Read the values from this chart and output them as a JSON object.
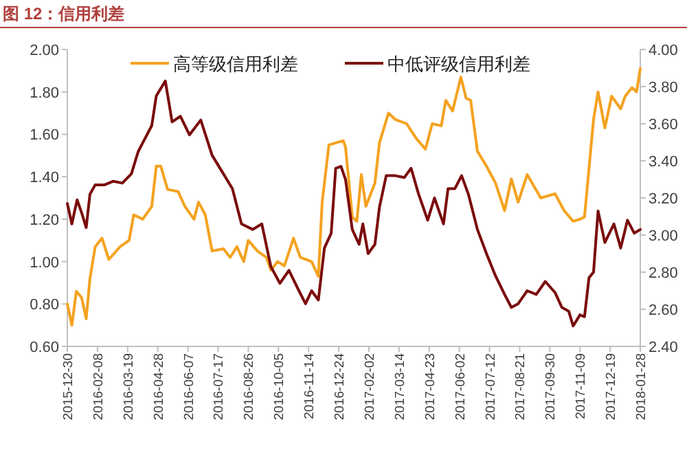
{
  "chart_data": {
    "type": "line",
    "title": "图 12：信用利差",
    "legend": "top",
    "grid": false,
    "xlim": [
      "2015-12-30",
      "2018-01-28"
    ],
    "xticks": [
      "2015-12-30",
      "2016-02-08",
      "2016-03-19",
      "2016-04-28",
      "2016-06-07",
      "2016-07-17",
      "2016-08-26",
      "2016-10-05",
      "2016-11-14",
      "2016-12-24",
      "2017-02-02",
      "2017-03-14",
      "2017-04-23",
      "2017-06-02",
      "2017-07-12",
      "2017-08-21",
      "2017-09-30",
      "2017-11-09",
      "2017-12-19",
      "2018-01-28"
    ],
    "ylim": [
      0.6,
      2.0
    ],
    "yticks": [
      {
        "value": 0.6,
        "label": "0.60"
      },
      {
        "value": 0.8,
        "label": "0.80"
      },
      {
        "value": 1.0,
        "label": "1.00"
      },
      {
        "value": 1.2,
        "label": "1.20"
      },
      {
        "value": 1.4,
        "label": "1.40"
      },
      {
        "value": 1.6,
        "label": "1.60"
      },
      {
        "value": 1.8,
        "label": "1.80"
      },
      {
        "value": 2.0,
        "label": "2.00"
      }
    ],
    "y2lim": [
      2.4,
      4.0
    ],
    "y2ticks": [
      {
        "value": 2.4,
        "label": "2.40"
      },
      {
        "value": 2.6,
        "label": "2.60"
      },
      {
        "value": 2.8,
        "label": "2.80"
      },
      {
        "value": 3.0,
        "label": "3.00"
      },
      {
        "value": 3.2,
        "label": "3.20"
      },
      {
        "value": 3.4,
        "label": "3.40"
      },
      {
        "value": 3.6,
        "label": "3.60"
      },
      {
        "value": 3.8,
        "label": "3.80"
      },
      {
        "value": 4.0,
        "label": "4.00"
      }
    ],
    "series": [
      {
        "name": "高等级信用利差",
        "color": "#f4a21f",
        "x": [
          "2015-12-30",
          "2016-01-05",
          "2016-01-11",
          "2016-01-18",
          "2016-01-24",
          "2016-01-29",
          "2016-02-05",
          "2016-02-14",
          "2016-02-23",
          "2016-03-09",
          "2016-03-21",
          "2016-03-27",
          "2016-04-08",
          "2016-04-20",
          "2016-04-26",
          "2016-05-02",
          "2016-05-11",
          "2016-05-25",
          "2016-06-03",
          "2016-06-15",
          "2016-06-21",
          "2016-06-30",
          "2016-07-09",
          "2016-07-24",
          "2016-08-02",
          "2016-08-11",
          "2016-08-20",
          "2016-08-26",
          "2016-09-07",
          "2016-09-19",
          "2016-09-25",
          "2016-10-04",
          "2016-10-13",
          "2016-10-25",
          "2016-11-03",
          "2016-11-18",
          "2016-11-27",
          "2016-12-02",
          "2016-12-11",
          "2016-12-30",
          "2017-01-02",
          "2017-01-11",
          "2017-01-17",
          "2017-01-23",
          "2017-01-29",
          "2017-02-10",
          "2017-02-16",
          "2017-02-28",
          "2017-03-09",
          "2017-03-24",
          "2017-04-06",
          "2017-04-18",
          "2017-04-27",
          "2017-05-09",
          "2017-05-15",
          "2017-05-24",
          "2017-06-04",
          "2017-06-11",
          "2017-06-17",
          "2017-06-26",
          "2017-07-08",
          "2017-07-20",
          "2017-08-01",
          "2017-08-10",
          "2017-08-19",
          "2017-08-31",
          "2017-09-18",
          "2017-10-07",
          "2017-10-19",
          "2017-10-31",
          "2017-11-09",
          "2017-11-15",
          "2017-11-27",
          "2017-12-03",
          "2017-12-12",
          "2017-12-21",
          "2018-01-02",
          "2018-01-08",
          "2018-01-17",
          "2018-01-23",
          "2018-01-28"
        ],
        "values": [
          0.8,
          0.7,
          0.86,
          0.83,
          0.73,
          0.92,
          1.07,
          1.11,
          1.01,
          1.07,
          1.1,
          1.22,
          1.2,
          1.26,
          1.45,
          1.45,
          1.34,
          1.33,
          1.26,
          1.2,
          1.28,
          1.22,
          1.05,
          1.06,
          1.02,
          1.07,
          1.0,
          1.1,
          1.05,
          1.02,
          0.96,
          1.0,
          0.98,
          1.11,
          1.02,
          1.0,
          0.93,
          1.28,
          1.55,
          1.57,
          1.54,
          1.21,
          1.19,
          1.41,
          1.26,
          1.37,
          1.56,
          1.7,
          1.67,
          1.65,
          1.58,
          1.53,
          1.65,
          1.64,
          1.76,
          1.71,
          1.87,
          1.77,
          1.76,
          1.52,
          1.45,
          1.37,
          1.24,
          1.39,
          1.28,
          1.41,
          1.3,
          1.32,
          1.24,
          1.19,
          1.2,
          1.21,
          1.67,
          1.8,
          1.63,
          1.78,
          1.72,
          1.78,
          1.82,
          1.8,
          1.91
        ]
      },
      {
        "name": "中低评级信用利差",
        "color": "#7b0c0c",
        "axis": "y2",
        "x": [
          "2015-12-30",
          "2016-01-05",
          "2016-01-12",
          "2016-01-18",
          "2016-01-24",
          "2016-01-29",
          "2016-02-05",
          "2016-02-17",
          "2016-02-29",
          "2016-03-12",
          "2016-03-24",
          "2016-04-02",
          "2016-04-11",
          "2016-04-20",
          "2016-04-26",
          "2016-05-08",
          "2016-05-17",
          "2016-05-28",
          "2016-06-09",
          "2016-06-24",
          "2016-07-09",
          "2016-07-24",
          "2016-08-05",
          "2016-08-17",
          "2016-09-01",
          "2016-09-13",
          "2016-09-25",
          "2016-10-07",
          "2016-10-19",
          "2016-10-31",
          "2016-11-10",
          "2016-11-18",
          "2016-11-27",
          "2016-12-05",
          "2016-12-14",
          "2016-12-20",
          "2016-12-27",
          "2017-01-02",
          "2017-01-11",
          "2017-01-20",
          "2017-01-25",
          "2017-02-01",
          "2017-02-10",
          "2017-02-16",
          "2017-02-25",
          "2017-03-09",
          "2017-03-21",
          "2017-03-30",
          "2017-04-09",
          "2017-04-21",
          "2017-04-30",
          "2017-05-12",
          "2017-05-18",
          "2017-05-27",
          "2017-06-05",
          "2017-06-14",
          "2017-06-26",
          "2017-07-08",
          "2017-07-20",
          "2017-08-01",
          "2017-08-10",
          "2017-08-19",
          "2017-08-31",
          "2017-09-12",
          "2017-09-24",
          "2017-10-07",
          "2017-10-16",
          "2017-10-25",
          "2017-10-31",
          "2017-11-09",
          "2017-11-15",
          "2017-11-21",
          "2017-11-27",
          "2017-12-03",
          "2017-12-12",
          "2017-12-24",
          "2018-01-02",
          "2018-01-11",
          "2018-01-20",
          "2018-01-28"
        ],
        "values": [
          3.17,
          3.06,
          3.19,
          3.12,
          3.04,
          3.22,
          3.27,
          3.27,
          3.29,
          3.28,
          3.33,
          3.45,
          3.52,
          3.59,
          3.75,
          3.83,
          3.61,
          3.64,
          3.54,
          3.62,
          3.43,
          3.33,
          3.25,
          3.06,
          3.03,
          3.06,
          2.83,
          2.74,
          2.81,
          2.71,
          2.63,
          2.7,
          2.65,
          2.93,
          3.01,
          3.36,
          3.37,
          3.3,
          3.03,
          2.95,
          3.06,
          2.9,
          2.95,
          3.15,
          3.32,
          3.32,
          3.31,
          3.36,
          3.22,
          3.08,
          3.2,
          3.06,
          3.25,
          3.25,
          3.32,
          3.22,
          3.03,
          2.9,
          2.78,
          2.68,
          2.61,
          2.63,
          2.7,
          2.68,
          2.75,
          2.69,
          2.61,
          2.59,
          2.51,
          2.57,
          2.56,
          2.77,
          2.8,
          3.13,
          2.96,
          3.06,
          2.93,
          3.08,
          3.01,
          3.03
        ]
      }
    ]
  }
}
